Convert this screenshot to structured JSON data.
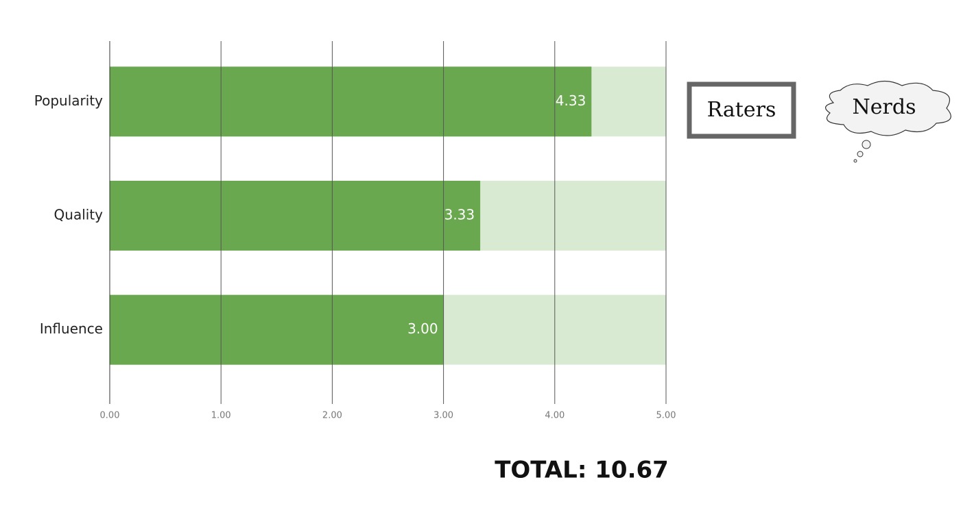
{
  "chart_data": {
    "type": "bar",
    "orientation": "horizontal",
    "categories": [
      "Popularity",
      "Quality",
      "Influence"
    ],
    "values": [
      4.33,
      3.33,
      3
    ],
    "value_labels": [
      "4.33",
      "3.33",
      "3.00"
    ],
    "color": "#6aa84f",
    "track_color": "#d9ead3",
    "xlim": [
      0,
      5
    ],
    "xticks": [
      {
        "value": 0,
        "label": "0.00"
      },
      {
        "value": 1,
        "label": "1.00"
      },
      {
        "value": 2,
        "label": "2.00"
      },
      {
        "value": 3,
        "label": "3.00"
      },
      {
        "value": 4,
        "label": "4.00"
      },
      {
        "value": 5,
        "label": "5.00"
      }
    ],
    "grid": true,
    "annotations": {
      "box": "Raters",
      "cloud": "Nerds",
      "total": "TOTAL: 10.67"
    }
  }
}
